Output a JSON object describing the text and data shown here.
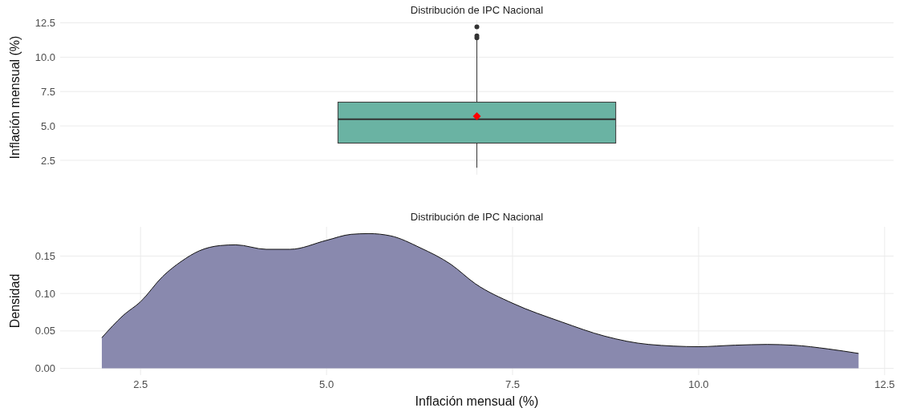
{
  "chart_data": [
    {
      "type": "box",
      "title": "Distribución de IPC Nacional",
      "ylabel": "Inflación mensual (%)",
      "categories": [
        null
      ],
      "color": "#6ab3a3",
      "boxes": [
        {
          "low": 1.96,
          "q1": 3.75,
          "median": 5.48,
          "q3": 6.73,
          "high": 11.27,
          "mean": 5.71,
          "outliers": [
            11.4,
            11.55,
            12.2
          ]
        }
      ],
      "ylim": [
        1.45,
        12.7
      ],
      "yticks": [
        2.5,
        {
          "value": 5,
          "label": "5.0"
        },
        7.5,
        {
          "value": 10,
          "label": "10.0"
        },
        12.5
      ],
      "grid": true,
      "tick_labels": "y"
    },
    {
      "type": "area",
      "title": "Distribución de IPC Nacional",
      "xlabel": "Inflación mensual (%)",
      "ylabel": "Densidad",
      "color": "#8989ae",
      "x": [
        1.98,
        2.27,
        2.5,
        2.8,
        3.05,
        3.29,
        3.57,
        3.78,
        4.19,
        4.51,
        5.0,
        5.33,
        5.57,
        5.86,
        6.26,
        6.67,
        7.0,
        7.5,
        8.16,
        8.74,
        9.33,
        10.0,
        10.49,
        10.92,
        11.27,
        11.74,
        12.15
      ],
      "values": [
        0.041,
        0.071,
        0.089,
        0.123,
        0.143,
        0.157,
        0.164,
        0.165,
        0.159,
        0.159,
        0.171,
        0.179,
        0.18,
        0.177,
        0.161,
        0.139,
        0.113,
        0.087,
        0.062,
        0.043,
        0.032,
        0.029,
        0.031,
        0.032,
        0.031,
        0.026,
        0.02
      ],
      "xlim": [
        1.42,
        12.62
      ],
      "xticks": [
        2.5,
        {
          "value": 5,
          "label": "5.0"
        },
        7.5,
        {
          "value": 10,
          "label": "10.0"
        },
        12.5
      ],
      "ylim": [
        -0.009,
        0.189
      ],
      "yticks": [
        {
          "value": 0,
          "label": "0.00"
        },
        0.05,
        {
          "value": 0.1,
          "label": "0.10"
        },
        0.15
      ],
      "grid": true
    }
  ]
}
